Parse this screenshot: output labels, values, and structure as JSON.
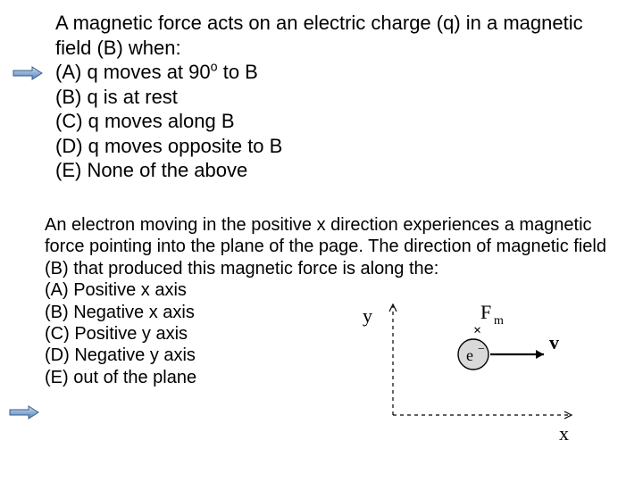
{
  "q1": {
    "stem": "A magnetic force acts on an electric charge (q) in a magnetic field (B) when:",
    "A_pre": "(A) q moves at 90",
    "A_deg": "o",
    "A_post": " to B",
    "B": "(B) q is at rest",
    "C": "(C) q moves along B",
    "D": "(D) q moves opposite to B",
    "E": "(E) None of the above"
  },
  "q2": {
    "stem": "An electron moving in the positive x direction experiences a magnetic force pointing into the plane of the page. The direction of magnetic field (B) that produced this magnetic force is along the:",
    "A": " (A) Positive x axis",
    "B": "(B) Negative x axis",
    "C": "(C) Positive y axis",
    "D": "(D) Negative y axis",
    "E": "(E) out of the plane"
  },
  "arrows": {
    "outline_color": "#385d8a",
    "fill_color": "#4f81bd",
    "gradient_end": "#d0ddee"
  },
  "diagram": {
    "y_label": "y",
    "x_label": "x",
    "F_label": "F",
    "F_sub": "m",
    "v_label": "v",
    "e_label": "e",
    "e_minus": "−",
    "axis_color": "#000000",
    "dash": "4,4",
    "electron_fill": "#d9d9d9",
    "electron_stroke": "#000000",
    "font_family": "Georgia, 'Times New Roman', serif",
    "label_fontsize": 22
  }
}
